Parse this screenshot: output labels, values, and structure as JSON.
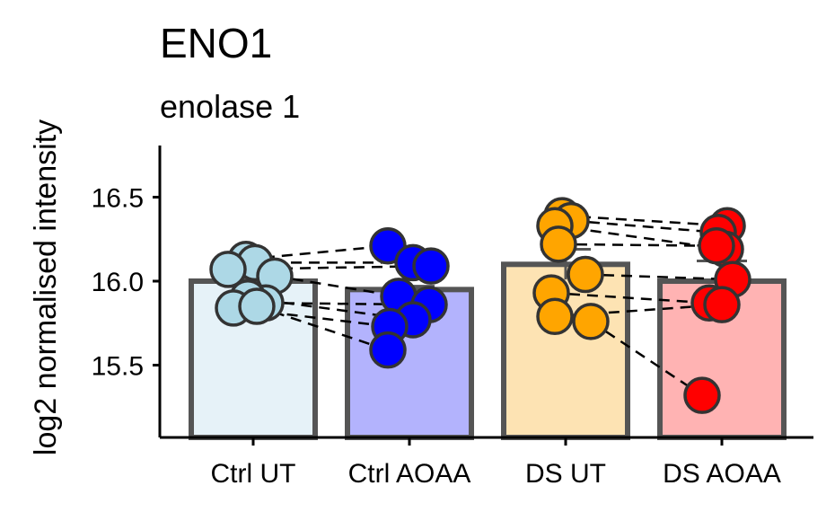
{
  "chart_data": {
    "type": "bar",
    "title": "ENO1",
    "subtitle": "enolase 1",
    "ylabel": "log2 normalised intensity",
    "xlabel": "",
    "ylim": [
      15.07,
      16.8
    ],
    "yticks": [
      15.5,
      16.0,
      16.5
    ],
    "ytick_labels": [
      "15.5",
      "16.0",
      "16.5"
    ],
    "categories": [
      "Ctrl UT",
      "Ctrl AOAA",
      "DS UT",
      "DS AOAA"
    ],
    "values": [
      16.0,
      15.95,
      16.1,
      16.0
    ],
    "errors": [
      0.02,
      0.02,
      0.09,
      0.12
    ],
    "bar_colors": [
      "#e6f2f8",
      "#b3b3fd",
      "#fde3b3",
      "#ffb3b3"
    ],
    "point_colors": [
      "#add8e6",
      "#0000ff",
      "#ffa500",
      "#ff0000"
    ],
    "points": [
      [
        16.13,
        16.11,
        16.07,
        16.03,
        15.87,
        15.9,
        15.84,
        15.85
      ],
      [
        16.21,
        16.11,
        16.09,
        15.91,
        15.86,
        15.77,
        15.73,
        15.59
      ],
      [
        16.39,
        16.36,
        16.33,
        16.22,
        16.04,
        15.93,
        15.79,
        15.76
      ],
      [
        16.33,
        16.29,
        16.19,
        16.21,
        16.01,
        15.87,
        15.86,
        15.32
      ]
    ],
    "pairs": [
      [
        [
          16.13,
          16.21
        ],
        [
          16.11,
          16.11
        ],
        [
          16.07,
          16.09
        ],
        [
          16.03,
          15.91
        ],
        [
          15.87,
          15.86
        ],
        [
          15.9,
          15.77
        ],
        [
          15.84,
          15.73
        ],
        [
          15.85,
          15.59
        ]
      ],
      [],
      [
        [
          16.39,
          16.33
        ],
        [
          16.36,
          16.29
        ],
        [
          16.33,
          16.19
        ],
        [
          16.22,
          16.21
        ],
        [
          16.04,
          16.01
        ],
        [
          15.93,
          15.87
        ],
        [
          15.79,
          15.86
        ],
        [
          15.76,
          15.32
        ]
      ],
      []
    ],
    "grid": false
  }
}
